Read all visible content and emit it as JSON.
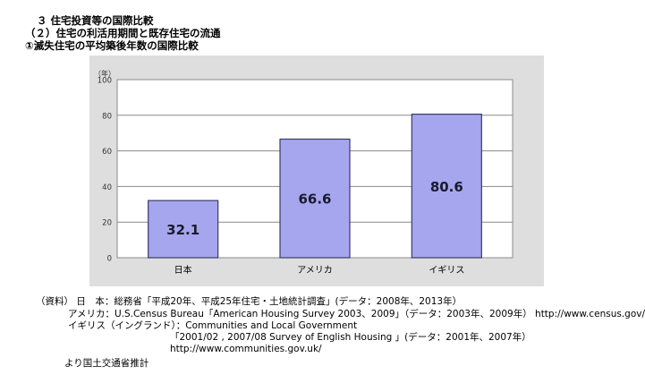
{
  "header": {
    "line1": "３ 住宅投資等の国際比較",
    "line2": "（２）住宅の利活用期間と既存住宅の流通",
    "line3": "①滅失住宅の平均築後年数の国際比較"
  },
  "chart_data": {
    "type": "bar",
    "categories": [
      "日本",
      "アメリカ",
      "イギリス"
    ],
    "values": [
      32.1,
      66.6,
      80.6
    ],
    "value_labels": [
      "32.1",
      "66.6",
      "80.6"
    ],
    "unit": "（年）",
    "ylim": [
      0,
      100
    ],
    "yticks": [
      0,
      20,
      40,
      60,
      80,
      100
    ],
    "grid": true,
    "legend": "none",
    "bar_color": "#a6a6ee",
    "bar_edge": "#3a3a6a"
  },
  "notes": {
    "line1": "（資料） 日　本：総務省「平成20年、平成25年住宅・土地統計調査」(データ：2008年、2013年）",
    "line2": "アメリカ：U.S.Census Bureau「American Housing Survey 2003、2009」（データ：2003年、2009年） http://www.census.gov/",
    "line3": "イギリス（イングランド）：Communities and Local Government",
    "line4": "「2001/02 , 2007/08 Survey of English Housing 」(データ：2001年、2007年）",
    "line5": "http://www.communities.gov.uk/",
    "line6": "より国土交通省推計"
  }
}
